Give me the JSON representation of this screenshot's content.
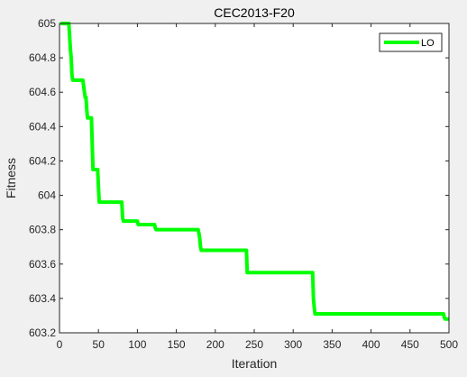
{
  "chart_data": {
    "type": "line",
    "title": "CEC2013-F20",
    "xlabel": "Iteration",
    "ylabel": "Fitness",
    "xlim": [
      0,
      500
    ],
    "ylim": [
      603.2,
      605
    ],
    "xticks": [
      0,
      50,
      100,
      150,
      200,
      250,
      300,
      350,
      400,
      450,
      500
    ],
    "xtick_labels": [
      "0",
      "50",
      "100",
      "150",
      "200",
      "250",
      "300",
      "350",
      "400",
      "450",
      "500"
    ],
    "yticks": [
      603.2,
      603.4,
      603.6,
      603.8,
      604,
      604.2,
      604.4,
      604.6,
      604.8,
      605
    ],
    "ytick_labels": [
      "603.2",
      "603.4",
      "603.6",
      "603.8",
      "604",
      "604.2",
      "604.4",
      "604.6",
      "604.8",
      "605"
    ],
    "grid": false,
    "legend": {
      "position": "top-right",
      "entries": [
        "LO"
      ]
    },
    "series": [
      {
        "name": "LO",
        "color": "#00ff00",
        "x": [
          1,
          12,
          14,
          15,
          16,
          17,
          30,
          32,
          33,
          34,
          35,
          36,
          37,
          38,
          41,
          42,
          43,
          44,
          46,
          49,
          50,
          51,
          52,
          80,
          81,
          82,
          100,
          101,
          102,
          122,
          123,
          124,
          178,
          179,
          180,
          181,
          182,
          240,
          241,
          325,
          326,
          327,
          328,
          400,
          493,
          494,
          495,
          500
        ],
        "y": [
          605.0,
          605.0,
          604.85,
          604.8,
          604.7,
          604.67,
          604.67,
          604.6,
          604.57,
          604.57,
          604.5,
          604.45,
          604.45,
          604.45,
          604.45,
          604.3,
          604.15,
          604.15,
          604.15,
          604.15,
          604.05,
          603.96,
          603.96,
          603.96,
          603.87,
          603.85,
          603.85,
          603.83,
          603.83,
          603.83,
          603.81,
          603.8,
          603.8,
          603.78,
          603.75,
          603.7,
          603.68,
          603.68,
          603.55,
          603.55,
          603.4,
          603.35,
          603.31,
          603.31,
          603.31,
          603.29,
          603.28,
          603.28
        ]
      }
    ]
  }
}
